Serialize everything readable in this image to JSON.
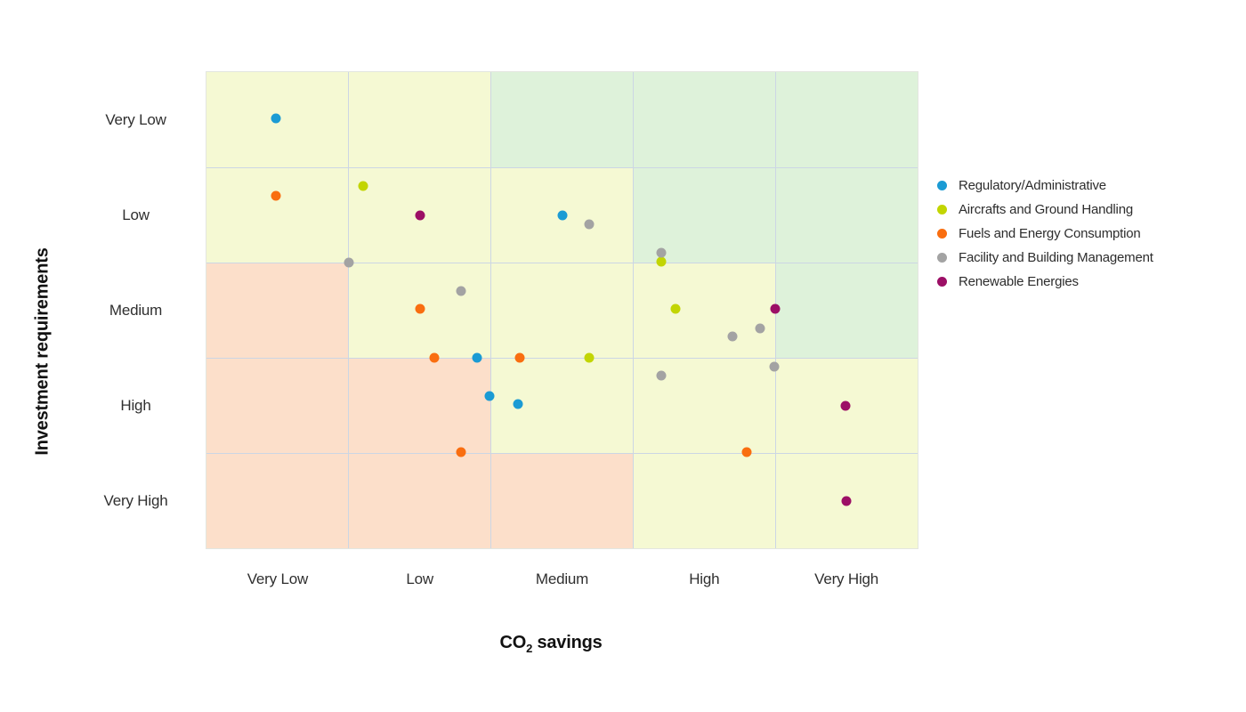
{
  "page": {
    "background": "#ffffff"
  },
  "chart_data": {
    "type": "scatter",
    "title": "",
    "x_axis": {
      "label_prefix": "CO",
      "label_sub": "2",
      "label_suffix": " savings",
      "categories": [
        "Very Low",
        "Low",
        "Medium",
        "High",
        "Very High"
      ]
    },
    "y_axis": {
      "label": "Investment requirements",
      "categories": [
        "Very Low",
        "Low",
        "Medium",
        "High",
        "Very High"
      ]
    },
    "grid": {
      "line_color": "#ccd6e4",
      "cell_palette": {
        "green": "#def2da",
        "yellow": "#f5f9d3",
        "red": "#fcdfca"
      },
      "cells": [
        [
          "yellow",
          "yellow",
          "green",
          "green",
          "green"
        ],
        [
          "yellow",
          "yellow",
          "yellow",
          "green",
          "green"
        ],
        [
          "red",
          "yellow",
          "yellow",
          "yellow",
          "green"
        ],
        [
          "red",
          "red",
          "yellow",
          "yellow",
          "yellow"
        ],
        [
          "red",
          "red",
          "red",
          "yellow",
          "yellow"
        ]
      ]
    },
    "legend_position": "right",
    "axis_units": "category cells 0-5; x left-to-right, y top-to-bottom",
    "series": [
      {
        "name": "Regulatory/Administrative",
        "color": "#1b9bd4",
        "points": [
          [
            0.49,
            0.49
          ],
          [
            2.5,
            1.5
          ],
          [
            1.9,
            3.0
          ],
          [
            1.99,
            3.4
          ],
          [
            2.19,
            3.49
          ]
        ]
      },
      {
        "name": "Aircrafts and Ground Handling",
        "color": "#c2d502",
        "points": [
          [
            1.1,
            1.2
          ],
          [
            3.2,
            1.99
          ],
          [
            3.3,
            2.49
          ],
          [
            2.69,
            3.0
          ]
        ]
      },
      {
        "name": "Fuels and Energy Consumption",
        "color": "#f96e10",
        "points": [
          [
            0.49,
            1.3
          ],
          [
            1.5,
            2.49
          ],
          [
            1.6,
            3.0
          ],
          [
            2.2,
            3.0
          ],
          [
            1.79,
            3.99
          ],
          [
            3.8,
            3.99
          ]
        ]
      },
      {
        "name": "Facility and Building Management",
        "color": "#a3a3a3",
        "points": [
          [
            1.0,
            2.0
          ],
          [
            1.79,
            2.3
          ],
          [
            2.69,
            1.6
          ],
          [
            3.2,
            1.9
          ],
          [
            3.7,
            2.78
          ],
          [
            3.89,
            2.69
          ],
          [
            3.99,
            3.09
          ],
          [
            3.2,
            3.19
          ]
        ]
      },
      {
        "name": "Renewable Energies",
        "color": "#9c0f66",
        "points": [
          [
            1.5,
            1.5
          ],
          [
            4.0,
            2.49
          ],
          [
            4.49,
            3.5
          ],
          [
            4.5,
            4.5
          ]
        ]
      }
    ]
  }
}
